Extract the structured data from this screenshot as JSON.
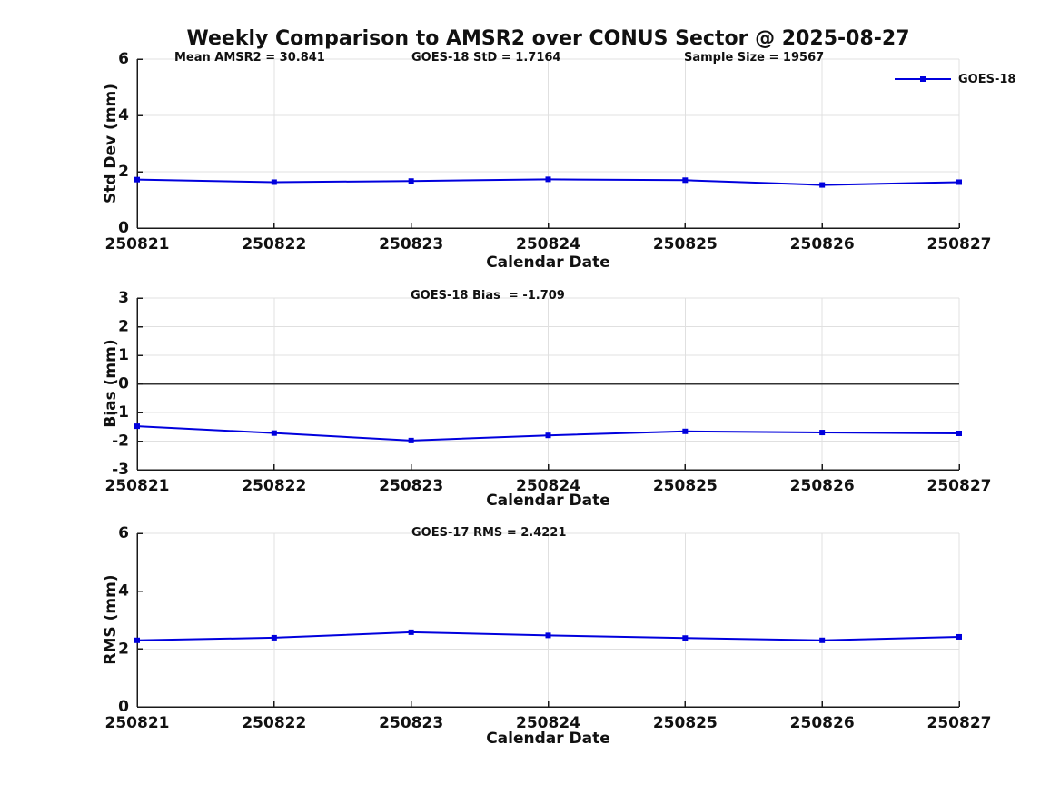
{
  "title": "Weekly Comparison to AMSR2 over CONUS Sector @ 2025-08-27",
  "legend": {
    "label": "GOES-18"
  },
  "colors": {
    "line": "#0000dd",
    "grid": "#e0e0e0",
    "axis": "#1a1a1a",
    "zero_line": "#333333",
    "text": "#111111",
    "background": "#ffffff"
  },
  "chart_data": [
    {
      "type": "line",
      "ylabel": "Std Dev (mm)",
      "xlabel": "Calendar Date",
      "ylim": [
        0,
        6
      ],
      "yticks": [
        0,
        2,
        4,
        6
      ],
      "grid": true,
      "legend_position": "top-right-outside",
      "categories": [
        "250821",
        "250822",
        "250823",
        "250824",
        "250825",
        "250826",
        "250827"
      ],
      "series": [
        {
          "name": "GOES-18",
          "values": [
            1.72,
            1.63,
            1.67,
            1.73,
            1.7,
            1.53,
            1.63
          ]
        }
      ],
      "annotations": [
        {
          "text": "Mean AMSR2 = 30.841"
        },
        {
          "text": "GOES-18 StD = 1.7164"
        },
        {
          "text": "Sample Size = 19567"
        }
      ]
    },
    {
      "type": "line",
      "ylabel": "Bias (mm)",
      "xlabel": "Calendar Date",
      "ylim": [
        -3,
        3
      ],
      "yticks": [
        -3,
        -2,
        -1,
        0,
        1,
        2,
        3
      ],
      "grid": true,
      "zero_line": true,
      "categories": [
        "250821",
        "250822",
        "250823",
        "250824",
        "250825",
        "250826",
        "250827"
      ],
      "series": [
        {
          "name": "GOES-18",
          "values": [
            -1.48,
            -1.72,
            -1.98,
            -1.8,
            -1.66,
            -1.7,
            -1.73
          ]
        }
      ],
      "annotations": [
        {
          "text": "GOES-18 Bias  = -1.709"
        }
      ]
    },
    {
      "type": "line",
      "ylabel": "RMS (mm)",
      "xlabel": "Calendar Date",
      "ylim": [
        0,
        6
      ],
      "yticks": [
        0,
        2,
        4,
        6
      ],
      "grid": true,
      "categories": [
        "250821",
        "250822",
        "250823",
        "250824",
        "250825",
        "250826",
        "250827"
      ],
      "series": [
        {
          "name": "GOES-18",
          "values": [
            2.3,
            2.39,
            2.58,
            2.47,
            2.38,
            2.3,
            2.42
          ]
        }
      ],
      "annotations": [
        {
          "text": "GOES-17 RMS = 2.4221"
        }
      ]
    }
  ]
}
